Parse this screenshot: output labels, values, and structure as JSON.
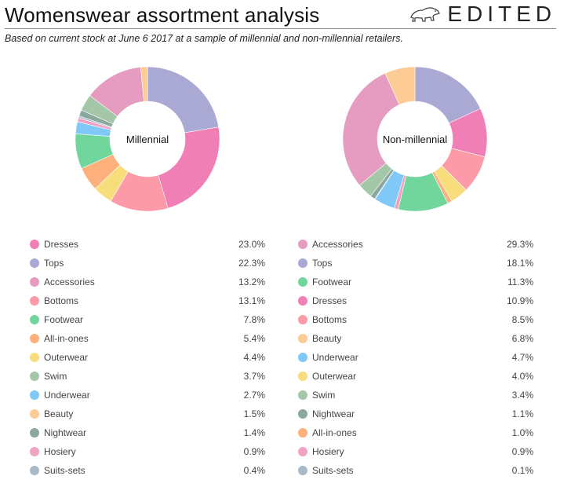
{
  "header": {
    "title": "Womenswear assortment analysis",
    "brand": "EDITED",
    "brand_icon": "polar-bear-icon",
    "subtitle": "Based on current stock at June 6 2017 at a sample of millennial and non-millennial retailers."
  },
  "chart_data": [
    {
      "type": "pie",
      "title": "",
      "center_label": "Millennial",
      "categories": [
        "Dresses",
        "Tops",
        "Accessories",
        "Bottoms",
        "Footwear",
        "All-in-ones",
        "Outerwear",
        "Swim",
        "Underwear",
        "Beauty",
        "Nightwear",
        "Hosiery",
        "Suits-sets"
      ],
      "values": [
        23.0,
        22.3,
        13.2,
        13.1,
        7.8,
        5.4,
        4.4,
        3.7,
        2.7,
        1.5,
        1.4,
        0.9,
        0.4
      ],
      "labels": [
        "23.0%",
        "22.3%",
        "13.2%",
        "13.1%",
        "7.8%",
        "5.4%",
        "4.4%",
        "3.7%",
        "2.7%",
        "1.5%",
        "1.4%",
        "0.9%",
        "0.4%"
      ],
      "slice_order": [
        "Tops",
        "Dresses",
        "Bottoms",
        "Outerwear",
        "All-in-ones",
        "Footwear",
        "Underwear",
        "Hosiery",
        "Suits-sets",
        "Nightwear",
        "Swim",
        "Accessories",
        "Beauty"
      ]
    },
    {
      "type": "pie",
      "title": "",
      "center_label": "Non-millennial",
      "categories": [
        "Accessories",
        "Tops",
        "Footwear",
        "Dresses",
        "Bottoms",
        "Beauty",
        "Underwear",
        "Outerwear",
        "Swim",
        "Nightwear",
        "All-in-ones",
        "Hosiery",
        "Suits-sets"
      ],
      "values": [
        29.3,
        18.1,
        11.3,
        10.9,
        8.5,
        6.8,
        4.7,
        4.0,
        3.4,
        1.1,
        1.0,
        0.9,
        0.1
      ],
      "labels": [
        "29.3%",
        "18.1%",
        "11.3%",
        "10.9%",
        "8.5%",
        "6.8%",
        "4.7%",
        "4.0%",
        "3.4%",
        "1.1%",
        "1.0%",
        "0.9%",
        "0.1%"
      ],
      "slice_order": [
        "Tops",
        "Dresses",
        "Bottoms",
        "Outerwear",
        "All-in-ones",
        "Footwear",
        "Hosiery",
        "Underwear",
        "Suits-sets",
        "Nightwear",
        "Swim",
        "Accessories",
        "Beauty"
      ]
    }
  ],
  "colors": {
    "Dresses": "#ef7fb5",
    "Tops": "#aaa9d4",
    "Accessories": "#e59cc0",
    "Bottoms": "#fd9aa7",
    "Footwear": "#71d69c",
    "All-in-ones": "#fdb07c",
    "Outerwear": "#f8dd7c",
    "Swim": "#a4c7a8",
    "Underwear": "#80c8f8",
    "Beauty": "#fdcc95",
    "Nightwear": "#8ba89f",
    "Hosiery": "#f0a3c2",
    "Suits-sets": "#a7bac8"
  }
}
